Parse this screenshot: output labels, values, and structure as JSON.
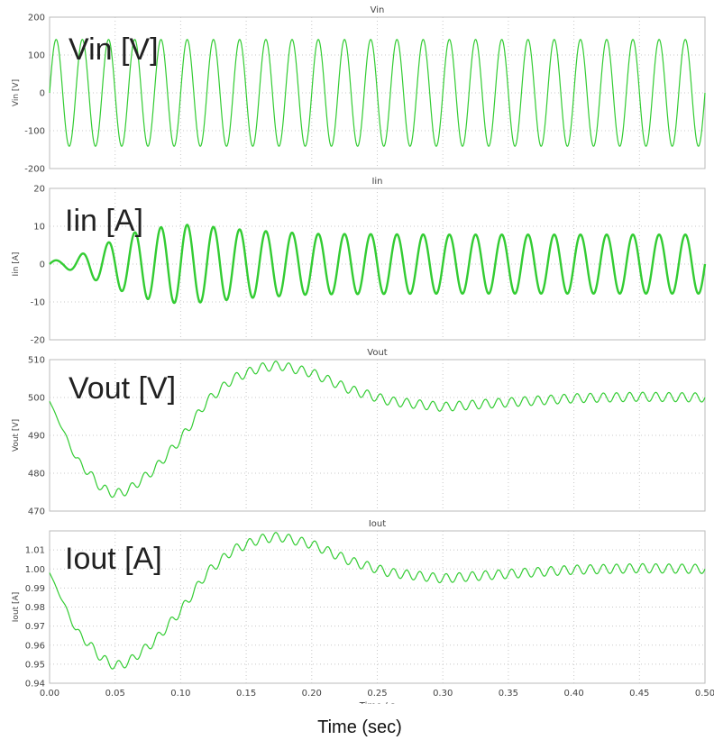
{
  "colors": {
    "trace": "#33cc33",
    "grid": "#c8c8c8",
    "frame": "#bbbbbb"
  },
  "x_label": "Time (sec)",
  "x_axis_label_partial": "Time / s",
  "chart_data": [
    {
      "type": "line",
      "title": "Vin",
      "ylabel": "Vin [V]",
      "annotation": "Vin [V]",
      "xlim": [
        0.0,
        0.5
      ],
      "ylim": [
        -200,
        200
      ],
      "yticks": [
        "200",
        "100",
        "0",
        "-100",
        "-200"
      ],
      "series": [
        {
          "waveform": "sinusoid",
          "frequency_hz": 50,
          "amplitude": 141,
          "offset": 0,
          "x_start": 0.0,
          "x_end": 0.5
        }
      ]
    },
    {
      "type": "line",
      "title": "Iin",
      "ylabel": "Iin [A]",
      "annotation": "Iin [A]",
      "xlim": [
        0.0,
        0.5
      ],
      "ylim": [
        -20,
        20
      ],
      "yticks": [
        "20",
        "10",
        "0",
        "-10",
        "-20"
      ],
      "series": [
        {
          "waveform": "sinusoid",
          "frequency_hz": 50,
          "offset": 0,
          "envelope": {
            "x": [
              0.0,
              0.01,
              0.02,
              0.03,
              0.05,
              0.07,
              0.09,
              0.1,
              0.12,
              0.15,
              0.2,
              0.3,
              0.5
            ],
            "amplitude": [
              1,
              1,
              2,
              3.5,
              6.5,
              9,
              10,
              10.5,
              10,
              9,
              8,
              7.8,
              7.8
            ]
          }
        }
      ]
    },
    {
      "type": "line",
      "title": "Vout",
      "ylabel": "Vout [V]",
      "annotation": "Vout [V]",
      "xlim": [
        0.0,
        0.5
      ],
      "ylim": [
        470,
        510
      ],
      "yticks": [
        "510",
        "500",
        "490",
        "480",
        "470"
      ],
      "series": [
        {
          "x": [
            0.0,
            0.02,
            0.04,
            0.05,
            0.06,
            0.08,
            0.1,
            0.12,
            0.14,
            0.16,
            0.175,
            0.2,
            0.23,
            0.26,
            0.3,
            0.34,
            0.4,
            0.45,
            0.5
          ],
          "y": [
            499,
            484,
            476,
            474.5,
            475.5,
            481,
            489,
            499,
            505,
            507.8,
            508.5,
            506.5,
            502,
            499,
            497.5,
            498.5,
            499.8,
            500.2,
            500
          ],
          "ripple_hz": 100,
          "ripple_amplitude": 1.2
        }
      ]
    },
    {
      "type": "line",
      "title": "Iout",
      "ylabel": "Iout [A]",
      "annotation": "Iout [A]",
      "xlim": [
        0.0,
        0.5
      ],
      "ylim": [
        0.94,
        1.02
      ],
      "yticks": [
        "1.01",
        "1.00",
        "0.99",
        "0.98",
        "0.97",
        "0.96",
        "0.95",
        "0.94"
      ],
      "ytick_values": [
        1.01,
        1.0,
        0.99,
        0.98,
        0.97,
        0.96,
        0.95,
        0.94
      ],
      "xticks": [
        "0.00",
        "0.05",
        "0.10",
        "0.15",
        "0.20",
        "0.25",
        "0.30",
        "0.35",
        "0.40",
        "0.45",
        "0.50"
      ],
      "series": [
        {
          "x": [
            0.0,
            0.02,
            0.04,
            0.05,
            0.06,
            0.08,
            0.1,
            0.12,
            0.14,
            0.16,
            0.175,
            0.2,
            0.23,
            0.26,
            0.3,
            0.34,
            0.4,
            0.45,
            0.5
          ],
          "y": [
            0.998,
            0.968,
            0.953,
            0.949,
            0.951,
            0.962,
            0.978,
            0.998,
            1.01,
            1.0156,
            1.017,
            1.013,
            1.004,
            0.998,
            0.995,
            0.997,
            0.9996,
            1.0004,
            1.0
          ],
          "ripple_hz": 100,
          "ripple_amplitude": 0.0024
        }
      ]
    }
  ]
}
